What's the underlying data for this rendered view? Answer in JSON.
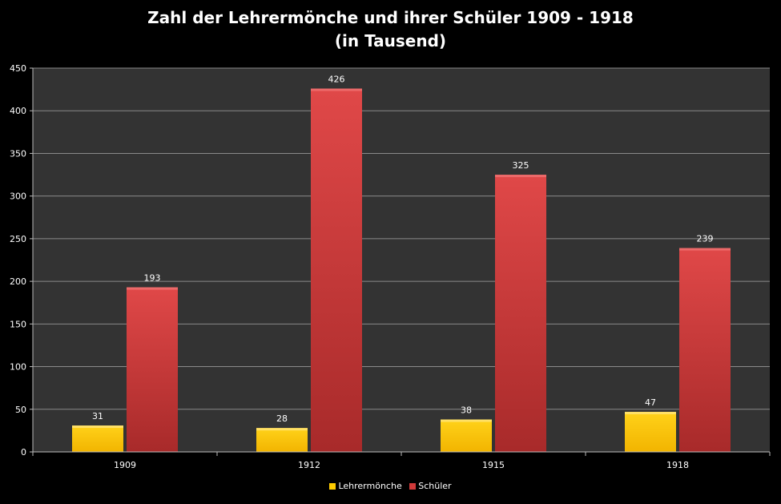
{
  "chart_data": {
    "type": "bar",
    "title": "Zahl der Lehrermönche und ihrer Schüler 1909 - 1918",
    "subtitle": "(in Tausend)",
    "categories": [
      "1909",
      "1912",
      "1915",
      "1918"
    ],
    "series": [
      {
        "name": "Lehrermönche",
        "color": "#ffcc00",
        "values": [
          31,
          28,
          38,
          47
        ]
      },
      {
        "name": "Schüler",
        "color": "#d03a3a",
        "values": [
          193,
          426,
          325,
          239
        ]
      }
    ],
    "ylim": [
      0,
      450
    ],
    "yticks": [
      "0",
      "50",
      "100",
      "150",
      "200",
      "250",
      "300",
      "350",
      "400",
      "450"
    ],
    "xlabel": "",
    "ylabel": "",
    "grid": true,
    "legend": "bottom",
    "plot_bg": "#333333"
  }
}
